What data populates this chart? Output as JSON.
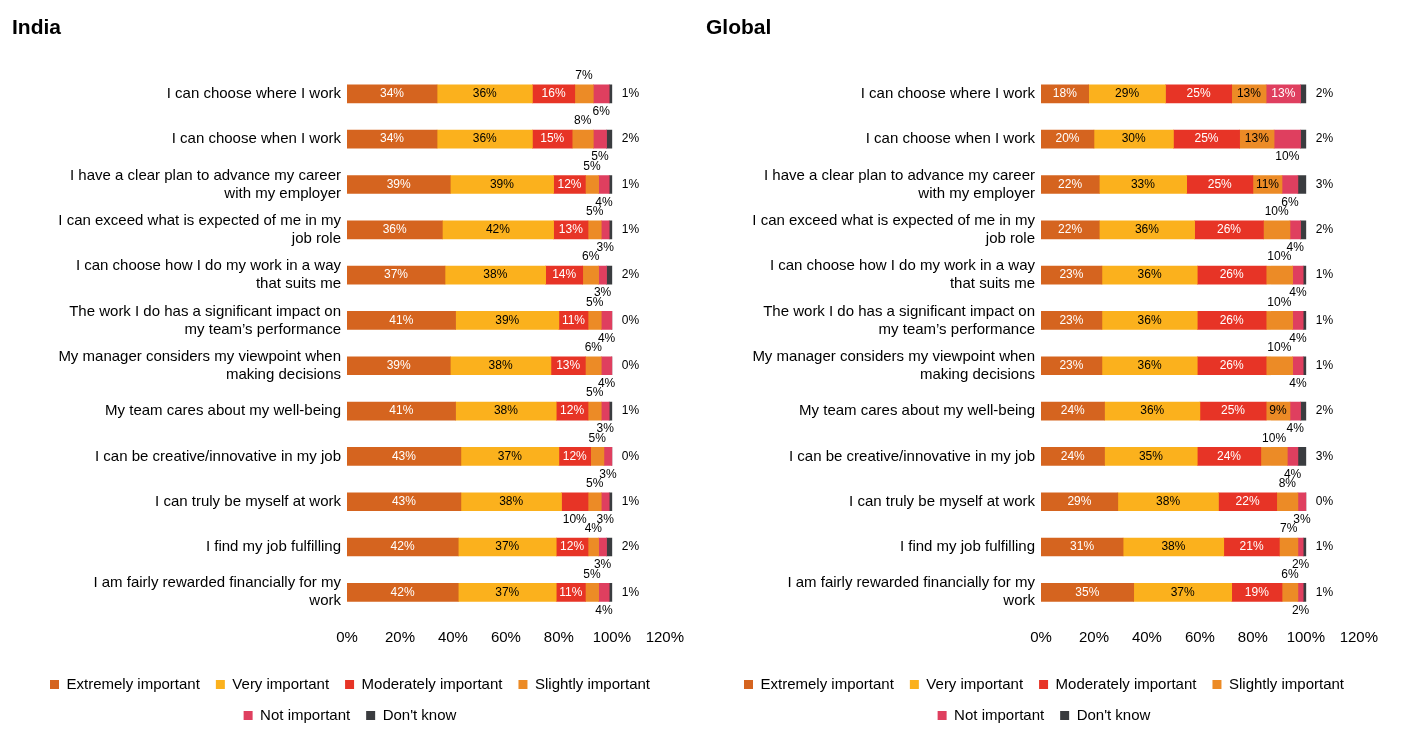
{
  "chart_data": [
    {
      "type": "bar",
      "title": "India",
      "orientation": "horizontal",
      "stacked": true,
      "legend": "bottom",
      "grid": false,
      "categories": [
        "I can choose where I work",
        "I can choose when I work",
        "I have a clear plan to advance my career with my employer",
        "I can exceed what is expected of me in my job role",
        "I can choose how I do my work in a way that suits me",
        "The work I do has a significant impact on my team’s performance",
        "My manager considers my viewpoint when making decisions",
        "My team cares about my well-being",
        "I can be creative/innovative in my job",
        "I can truly be myself at work",
        "I find my job fulfilling",
        "I am fairly rewarded financially for my work"
      ],
      "xlim": [
        0,
        120
      ],
      "xticks": [
        {
          "value": 0,
          "label": "0%"
        },
        {
          "value": 20,
          "label": "20%"
        },
        {
          "value": 40,
          "label": "40%"
        },
        {
          "value": 60,
          "label": "60%"
        },
        {
          "value": 80,
          "label": "80%"
        },
        {
          "value": 100,
          "label": "100%"
        },
        {
          "value": 120,
          "label": "120%"
        }
      ],
      "series": [
        {
          "name": "Extremely important",
          "color": "#d5641f",
          "values": [
            34,
            34,
            39,
            36,
            37,
            41,
            39,
            41,
            43,
            43,
            42,
            42
          ],
          "value_labels": [
            "34%",
            "34%",
            "39%",
            "36%",
            "37%",
            "41%",
            "39%",
            "41%",
            "43%",
            "43%",
            "42%",
            "42%"
          ]
        },
        {
          "name": "Very important",
          "color": "#fbb11d",
          "values": [
            36,
            36,
            39,
            42,
            38,
            39,
            38,
            38,
            37,
            38,
            37,
            37
          ],
          "value_labels": [
            "36%",
            "36%",
            "39%",
            "42%",
            "38%",
            "39%",
            "38%",
            "38%",
            "37%",
            "38%",
            "37%",
            "37%"
          ]
        },
        {
          "name": "Moderately important",
          "color": "#e73426",
          "values": [
            16,
            15,
            12,
            13,
            14,
            11,
            13,
            12,
            12,
            10,
            12,
            11
          ],
          "value_labels": [
            "16%",
            "15%",
            "12%",
            "13%",
            "14%",
            "11%",
            "13%",
            "12%",
            "12%",
            "10%",
            "12%",
            "11%"
          ]
        },
        {
          "name": "Slightly important",
          "color": "#ec8b26",
          "values": [
            7,
            8,
            5,
            5,
            6,
            5,
            6,
            5,
            5,
            5,
            4,
            5
          ],
          "value_labels": [
            "7%",
            "8%",
            "5%",
            "5%",
            "6%",
            "5%",
            "6%",
            "5%",
            "5%",
            "5%",
            "4%",
            "5%"
          ]
        },
        {
          "name": "Not important",
          "color": "#df3f5f",
          "values": [
            6,
            5,
            4,
            3,
            3,
            4,
            4,
            3,
            3,
            3,
            3,
            4
          ],
          "value_labels": [
            "6%",
            "5%",
            "4%",
            "3%",
            "3%",
            "4%",
            "4%",
            "3%",
            "3%",
            "3%",
            "3%",
            "4%"
          ]
        },
        {
          "name": "Don't know",
          "color": "#3a3c3f",
          "values": [
            1,
            2,
            1,
            1,
            2,
            0,
            0,
            1,
            0,
            1,
            2,
            1
          ],
          "value_labels": [
            "1%",
            "2%",
            "1%",
            "1%",
            "2%",
            "0%",
            "0%",
            "1%",
            "0%",
            "1%",
            "2%",
            "1%"
          ]
        }
      ]
    },
    {
      "type": "bar",
      "title": "Global",
      "orientation": "horizontal",
      "stacked": true,
      "legend": "bottom",
      "grid": false,
      "categories": [
        "I can choose where I work",
        "I can choose when I work",
        "I have a clear plan to advance my career with my employer",
        "I can exceed what is expected of me in my job role",
        "I can choose how I do my work in a way that suits me",
        "The work I do has a significant impact on my team’s performance",
        "My manager considers my viewpoint when making decisions",
        "My team cares about my well-being",
        "I can be creative/innovative in my job",
        "I can truly be myself at work",
        "I find my job fulfilling",
        "I am fairly rewarded financially for my work"
      ],
      "xlim": [
        0,
        120
      ],
      "xticks": [
        {
          "value": 0,
          "label": "0%"
        },
        {
          "value": 20,
          "label": "20%"
        },
        {
          "value": 40,
          "label": "40%"
        },
        {
          "value": 60,
          "label": "60%"
        },
        {
          "value": 80,
          "label": "80%"
        },
        {
          "value": 100,
          "label": "100%"
        },
        {
          "value": 120,
          "label": "120%"
        }
      ],
      "series": [
        {
          "name": "Extremely important",
          "color": "#d5641f",
          "values": [
            18,
            20,
            22,
            22,
            23,
            23,
            23,
            24,
            24,
            29,
            31,
            35
          ],
          "value_labels": [
            "18%",
            "20%",
            "22%",
            "22%",
            "23%",
            "23%",
            "23%",
            "24%",
            "24%",
            "29%",
            "31%",
            "35%"
          ]
        },
        {
          "name": "Very important",
          "color": "#fbb11d",
          "values": [
            29,
            30,
            33,
            36,
            36,
            36,
            36,
            36,
            35,
            38,
            38,
            37
          ],
          "value_labels": [
            "29%",
            "30%",
            "33%",
            "36%",
            "36%",
            "36%",
            "36%",
            "36%",
            "35%",
            "38%",
            "38%",
            "37%"
          ]
        },
        {
          "name": "Moderately important",
          "color": "#e73426",
          "values": [
            25,
            25,
            25,
            26,
            26,
            26,
            26,
            25,
            24,
            22,
            21,
            19
          ],
          "value_labels": [
            "25%",
            "25%",
            "25%",
            "26%",
            "26%",
            "26%",
            "26%",
            "25%",
            "24%",
            "22%",
            "21%",
            "19%"
          ]
        },
        {
          "name": "Slightly important",
          "color": "#ec8b26",
          "values": [
            13,
            13,
            11,
            10,
            10,
            10,
            10,
            9,
            10,
            8,
            7,
            6
          ],
          "value_labels": [
            "13%",
            "13%",
            "11%",
            "10%",
            "10%",
            "10%",
            "10%",
            "9%",
            "10%",
            "8%",
            "7%",
            "6%"
          ]
        },
        {
          "name": "Not important",
          "color": "#df3f5f",
          "values": [
            13,
            10,
            6,
            4,
            4,
            4,
            4,
            4,
            4,
            3,
            2,
            2
          ],
          "value_labels": [
            "13%",
            "10%",
            "6%",
            "4%",
            "4%",
            "4%",
            "4%",
            "4%",
            "4%",
            "3%",
            "2%",
            "2%"
          ]
        },
        {
          "name": "Don't know",
          "color": "#3a3c3f",
          "values": [
            2,
            2,
            3,
            2,
            1,
            1,
            1,
            2,
            3,
            0,
            1,
            1
          ],
          "value_labels": [
            "2%",
            "2%",
            "3%",
            "2%",
            "1%",
            "1%",
            "1%",
            "2%",
            "3%",
            "0%",
            "1%",
            "1%"
          ]
        }
      ]
    }
  ]
}
